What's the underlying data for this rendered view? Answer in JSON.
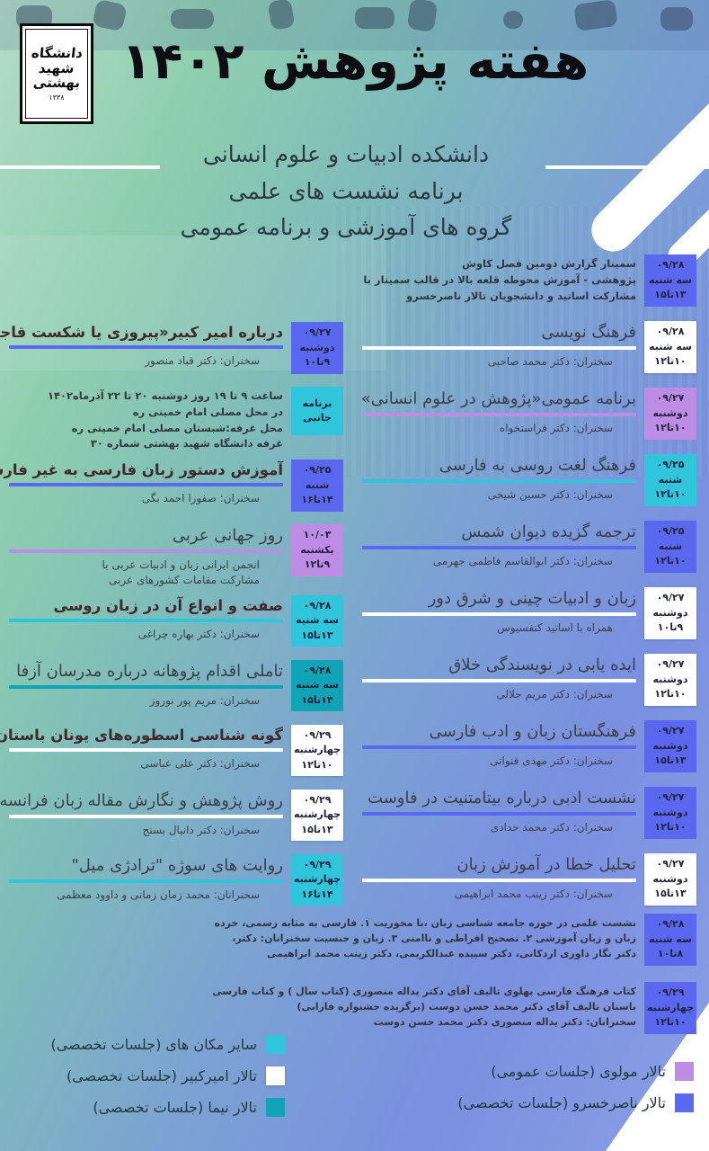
{
  "colors": {
    "hall_naserkhosrow_blue": "#5a68ef",
    "hall_molavi_purple": "#bd8ce4",
    "other_places_cyan": "#30c5da",
    "hall_nima_teal": "#10a4b6",
    "hall_amirkabir_white": "#ffffff",
    "bg_green": "#8fcfae",
    "bg_blue": "#7a90e0"
  },
  "header": {
    "logo": {
      "lines": [
        "دانشگاه",
        "شهید",
        "بهشتی"
      ],
      "year": "۱۳۳۸"
    },
    "title": "هفته پژوهش ۱۴۰۲",
    "subtitle_lines": [
      "دانشکده ادبیات و علوم انسانی",
      "برنامه نشست های علمی",
      "گروه های آموزشی و برنامه عمومی"
    ]
  },
  "right_column": [
    {
      "kind": "note",
      "badge": {
        "color": "blue",
        "date": "۰۹/۲۸",
        "day": "سه شنبه",
        "time": "۱۳تا۱۵"
      },
      "lines": [
        "سمینار گزارش دومین فصل کاوش",
        "پژوهشی - آموزش محوطه قلعه بالا در قالب سمینار با",
        "مشارکت اساتید و دانشجویان تالار ناصرخسرو"
      ]
    },
    {
      "kind": "session",
      "title": "فرهنگ نویسی",
      "speaker": "سخنران: دکتر محمد صاحبی",
      "line": "white",
      "badge": {
        "color": "white",
        "date": "۰۹/۲۸",
        "day": "سه شنبه",
        "time": "۱۰تا۱۲"
      }
    },
    {
      "kind": "session",
      "title": "برنامه عمومی«پژوهش در علوم انسانی»",
      "speaker": "سخنران: دکتر فراستخواه",
      "line": "purple",
      "badge": {
        "color": "purple",
        "date": "۰۹/۲۷",
        "day": "دوشنبه",
        "time": "۱۰تا۱۲"
      }
    },
    {
      "kind": "session",
      "title": "فرهنگ لغت روسی به فارسی",
      "speaker": "سخنران: دکتر حسین شیخی",
      "line": "cyan",
      "badge": {
        "color": "cyan",
        "date": "۰۹/۲۵",
        "day": "شنبه",
        "time": "۱۰تا۱۲"
      }
    },
    {
      "kind": "session",
      "title": "ترجمه گزیده دیوان شمس",
      "speaker": "سخنران: دکتر ابوالقاسم فاطمی جهرمی",
      "line": "blue",
      "badge": {
        "color": "blue",
        "date": "۰۹/۲۵",
        "day": "شنبه",
        "time": "۱۰تا۱۲"
      }
    },
    {
      "kind": "session",
      "title": "زبان و ادبیات چینی و شرق دور",
      "speaker": "همراه با اساتید کنفسیوس",
      "line": "white",
      "badge": {
        "color": "white",
        "date": "۰۹/۲۷",
        "day": "دوشنبه",
        "time": "۹تا۱۰"
      }
    },
    {
      "kind": "session",
      "title": "ایده یابی در نویسندگی خلاق",
      "speaker": "سخنران: دکتر مریم جلالی",
      "line": "white",
      "badge": {
        "color": "white",
        "date": "۰۹/۲۷",
        "day": "دوشنبه",
        "time": "۱۰تا۱۲"
      }
    },
    {
      "kind": "session",
      "title": "فرهنگستان زبان و ادب فارسی",
      "speaker": "سخنران: دکتر مهدی قنواتی",
      "line": "blue",
      "badge": {
        "color": "blue",
        "date": "۰۹/۲۷",
        "day": "دوشنبه",
        "time": "۱۳تا۱۵"
      }
    },
    {
      "kind": "session",
      "title": "نشست ادبی درباره بیتامتنیت در فاوست",
      "speaker": "سخنران: دکتر محمد حدادی",
      "line": "blue",
      "badge": {
        "color": "blue",
        "date": "۰۹/۲۷",
        "day": "دوشنبه",
        "time": "۱۰تا۱۲"
      }
    },
    {
      "kind": "session",
      "title": "تحلیل خطا در آموزش زبان",
      "speaker": "سخنران: دکتر زینب محمد ابراهیمی",
      "line": "white",
      "badge": {
        "color": "white",
        "date": "۰۹/۲۷",
        "day": "دوشنبه",
        "time": "۱۳تا۱۵"
      }
    }
  ],
  "left_column": [
    {
      "kind": "session",
      "bold": true,
      "title": "درباره امیر کبیر«پیروزی یا شکست قاجاریه»",
      "speaker": "سخنران: دکتر قباد منصور",
      "line": "blue",
      "badge": {
        "color": "blue",
        "date": "۰۹/۲۷",
        "day": "دوشنبه",
        "time": "۹تا۱۰"
      }
    },
    {
      "kind": "note",
      "badge": {
        "color": "cyan",
        "label_lines": [
          "برنامه",
          "جانبی"
        ]
      },
      "lines": [
        "ساعت ۹ تا ۱۹ روز دوشنبه ۲۰ تا ۲۲ آذرماه۱۴۰۲",
        "در محل مصلی امام خمینی ره",
        "محل غرفه:شبستان مصلی امام خمینی ره",
        "غرفه دانشگاه شهید بهشتی شماره ۳۰"
      ]
    },
    {
      "kind": "session",
      "bold": true,
      "title": "آموزش دستور زبان فارسی به غیر فارسی زبانان",
      "speaker": "سخنران: صفورا احمد بگی",
      "line": "blue",
      "badge": {
        "color": "blue",
        "date": "۰۹/۲۵",
        "day": "شنبه",
        "time": "۱۴تا۱۶"
      }
    },
    {
      "kind": "session",
      "title": "روز جهانی عربی",
      "speaker_lines": [
        "انجمن ایرانی زبان و ادبیات عربی با",
        "مشارکت مقامات کشورهای عربی"
      ],
      "line": "purple",
      "badge": {
        "color": "purple",
        "date": "۱۰/۰۳",
        "day": "یکشنبه",
        "time": "۹تا۱۲"
      }
    },
    {
      "kind": "session",
      "bold": true,
      "title": "صفت و انواع آن در زبان روسی",
      "speaker": "سخنران: دکتر بهاره چراغی",
      "line": "cyan",
      "badge": {
        "color": "cyan",
        "date": "۰۹/۲۸",
        "day": "سه شنبه",
        "time": "۱۳تا۱۵"
      }
    },
    {
      "kind": "session",
      "title": "تاملی اقدام پژوهانه درباره مدرسان آزفا",
      "speaker": "سخنران: مریم پور نوروز",
      "line": "teal",
      "badge": {
        "color": "teal",
        "date": "۰۹/۲۸",
        "day": "سه شنبه",
        "time": "۱۳تا۱۵"
      }
    },
    {
      "kind": "session",
      "bold": true,
      "title": "گونه شناسی اسطوره‌های یونان باستان",
      "speaker": "سخنران: دکتر علی عباسی",
      "line": "white",
      "badge": {
        "color": "white",
        "date": "۰۹/۲۹",
        "day": "چهارشنبه",
        "time": "۱۰تا۱۲"
      }
    },
    {
      "kind": "session",
      "title": "روش پژوهش و نگارش مقاله زبان فرانسه",
      "speaker": "سخنران: دکتر دانیال بسنج",
      "line": "white",
      "badge": {
        "color": "white",
        "date": "۰۹/۲۹",
        "day": "چهارشنبه",
        "time": "۱۳تا۱۵"
      }
    },
    {
      "kind": "session",
      "title": "روایت های سوژه \"ترادژی میل\"",
      "speaker": "سخنرانان: محمد زمان زمانی و داوود معظمی",
      "line": "cyan",
      "badge": {
        "color": "cyan",
        "date": "۰۹/۲۹",
        "day": "چهارشنبه",
        "time": "۱۴تا۱۶"
      }
    }
  ],
  "wide_events": [
    {
      "kind": "note",
      "badge": {
        "color": "blue",
        "date": "۰۹/۲۸",
        "day": "سه شنبه",
        "time": "۸تا۱۰"
      },
      "lines": [
        "نشست علمی در حوزه جامعه شناسی زبان ،با محوریت ۱. فارسی به مثابه رسمی، خرده زبان و زبان آموزشی ۲. تصحیح افراطی و ناامنی ۳. زبان و جنسیت سخنرانان: دکتر، دکتر نگار داوری اردکانی، دکتر سپیده عبدالکریمی، دکتر زینب محمد ابراهیمی"
      ]
    },
    {
      "kind": "note",
      "badge": {
        "color": "blue",
        "date": "۰۹/۲۹",
        "day": "چهارشنبه",
        "time": "۱۰تا۱۲"
      },
      "lines": [
        "کتاب فرهنگ فارسی پهلوی تالیف آقای دکتر یداله منصوری (کتاب سال ) و کتاب فارسی باستان تالیف آقای دکتر محمد حسن دوست (برگزیده جشنواره فارابی)",
        "سخنرانان: دکتر یداله منصوری دکتر محمد حسن دوست"
      ]
    }
  ],
  "legend": {
    "left": [
      {
        "color": "cyan",
        "label": "سایر مکان های (جلسات تخصصی)"
      },
      {
        "color": "white",
        "label": "تالار امیرکبیر (جلسات تخصصی)"
      },
      {
        "color": "teal",
        "label": "تالار نیما (جلسات تخصصی)"
      }
    ],
    "right": [
      {
        "color": "purple",
        "label": "تالار مولوی (جلسات عمومی)"
      },
      {
        "color": "blue",
        "label": "تالار ناصرخسرو (جلسات تخصصی)"
      }
    ]
  }
}
